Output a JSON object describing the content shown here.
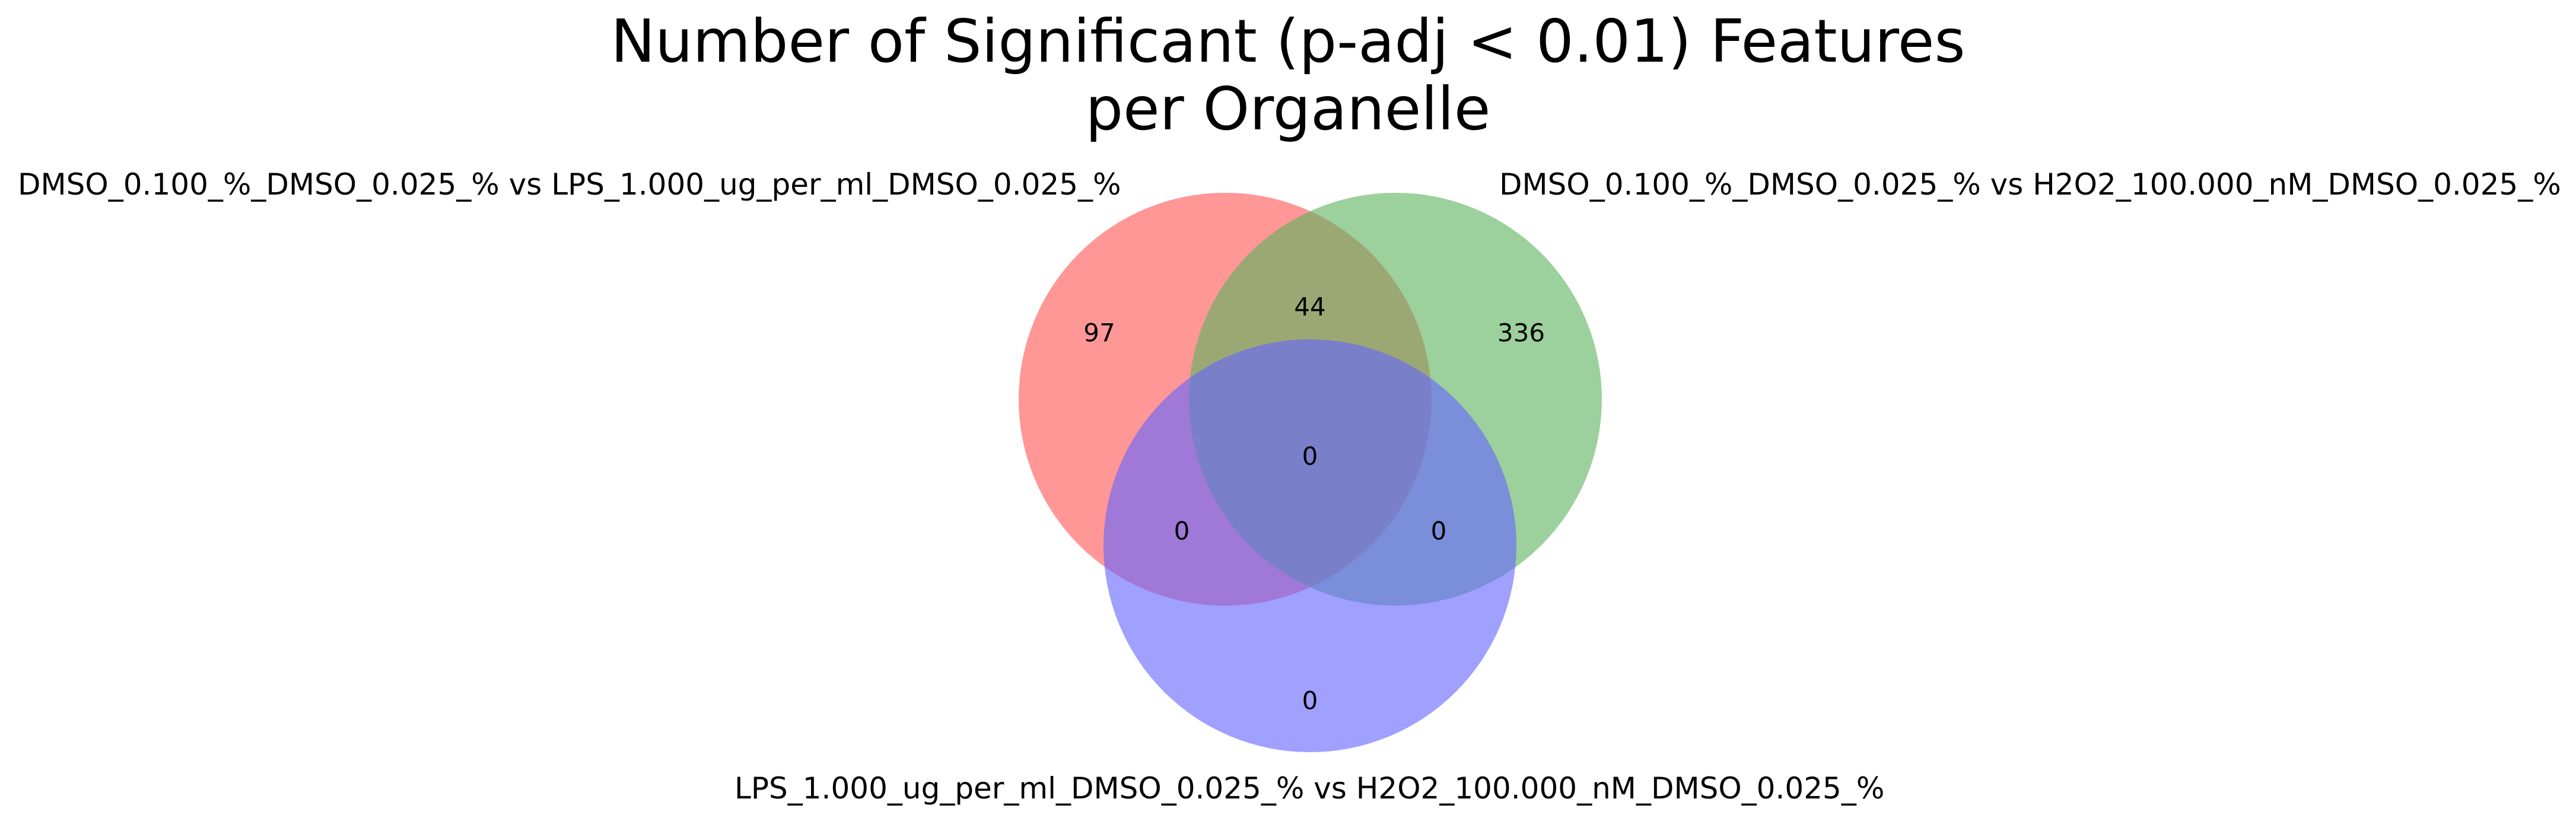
{
  "title": {
    "line1": "Number of Significant (p-adj < 0.01) Features",
    "line2": "per Organelle"
  },
  "sets": [
    {
      "label": "DMSO_0.100_%_DMSO_0.025_% vs LPS_1.000_ug_per_ml_DMSO_0.025_%",
      "color": "#ff6666"
    },
    {
      "label": "DMSO_0.100_%_DMSO_0.025_% vs H2O2_100.000_nM_DMSO_0.025_%",
      "color": "#5fb35f"
    },
    {
      "label": "LPS_1.000_ug_per_ml_DMSO_0.025_% vs H2O2_100.000_nM_DMSO_0.025_%",
      "color": "#6666ff"
    }
  ],
  "regions": {
    "only_a": "97",
    "only_b": "336",
    "only_c": "0",
    "a_and_b": "44",
    "a_and_c": "0",
    "b_and_c": "0",
    "a_b_c": "0"
  }
}
